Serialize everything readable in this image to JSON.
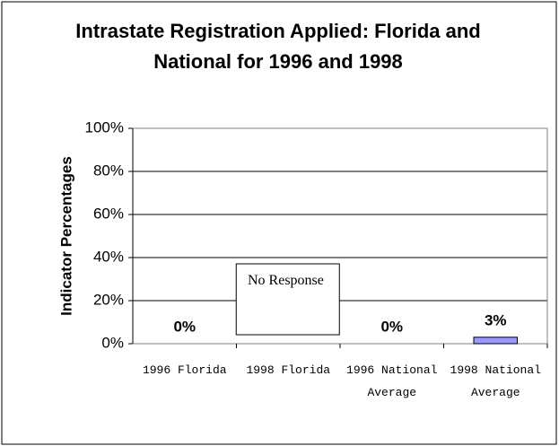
{
  "chart_data": {
    "type": "bar",
    "title": "Intrastate Registration Applied: Florida and National for 1996 and 1998",
    "y_label": "Indicator Percentages",
    "categories": [
      "1996 Florida",
      "1998 Florida",
      "1996 National Average",
      "1998 National Average"
    ],
    "values": [
      0,
      null,
      0,
      3
    ],
    "value_labels": [
      "0%",
      null,
      "0%",
      "3%"
    ],
    "annotation": "No Response",
    "color": "#9999ff",
    "ylim": [
      0,
      100
    ],
    "yticks": [
      {
        "value": 0,
        "label": "0%"
      },
      {
        "value": 20,
        "label": "20%"
      },
      {
        "value": 40,
        "label": "40%"
      },
      {
        "value": 60,
        "label": "60%"
      },
      {
        "value": 80,
        "label": "80%"
      },
      {
        "value": 100,
        "label": "100%"
      }
    ],
    "grid": true
  }
}
